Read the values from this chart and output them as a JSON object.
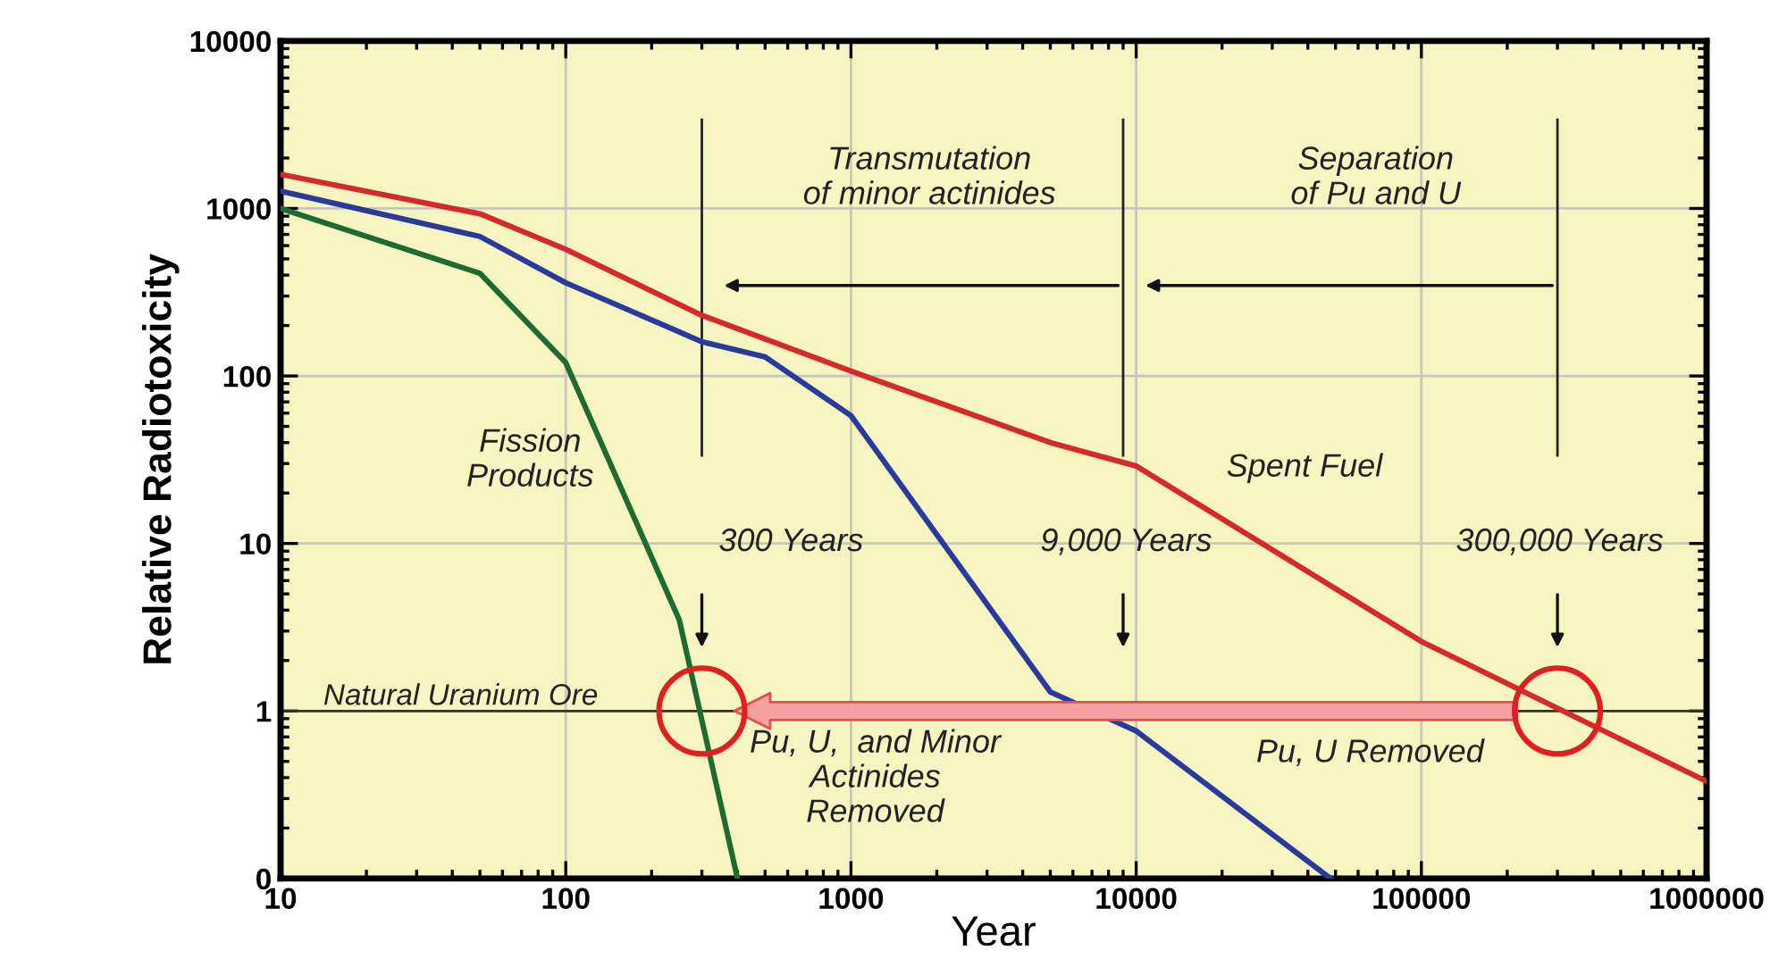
{
  "chart_data": {
    "type": "line",
    "xlabel": "Year",
    "ylabel": "Relative Radiotoxicity",
    "log": "xy",
    "xlim": [
      10,
      1000000
    ],
    "ylim": [
      0.1,
      10000
    ],
    "xticks": [
      10,
      100,
      1000,
      10000,
      100000,
      1000000
    ],
    "yticks": [
      {
        "value": 0.1,
        "label": "0"
      },
      1,
      10,
      100,
      1000,
      10000
    ],
    "grid": true,
    "legend": false,
    "marker": "none",
    "line_style": "solid",
    "series": [
      {
        "color": "#d42a2a",
        "x": [
          10,
          50,
          100,
          300,
          1000,
          5000,
          10000,
          100000,
          1000000
        ],
        "values": [
          1600,
          930,
          570,
          230,
          107,
          40,
          29,
          2.6,
          0.38
        ]
      },
      {
        "color": "#2a3a9a",
        "x": [
          10,
          50,
          100,
          300,
          500,
          1000,
          5000,
          10000,
          48000
        ],
        "values": [
          1270,
          680,
          360,
          160,
          130,
          58,
          1.3,
          0.76,
          0.1
        ]
      },
      {
        "color": "#1f6b2f",
        "x": [
          10,
          50,
          100,
          250,
          400
        ],
        "values": [
          1000,
          410,
          120,
          3.5,
          0.1
        ]
      }
    ],
    "ref_lines": [
      {
        "axis": "y",
        "value": 1,
        "label": "Natural Uranium Ore",
        "color": "#333333"
      },
      {
        "axis": "x",
        "value": 300,
        "label": null,
        "color": "#222222"
      },
      {
        "axis": "x",
        "value": 9000,
        "label": null,
        "color": "#222222"
      },
      {
        "axis": "x",
        "value": 300000,
        "label": null,
        "color": "#222222"
      }
    ],
    "annotations": [
      "Transmutation\nof minor actinides",
      "Separation\nof Pu and U",
      "Fission\nProducts",
      "Spent Fuel",
      "300 Years",
      "9,000 Years",
      "300,000 Years",
      "Pu, U,  and Minor\nActinides\nRemoved",
      "Pu, U Removed"
    ]
  }
}
